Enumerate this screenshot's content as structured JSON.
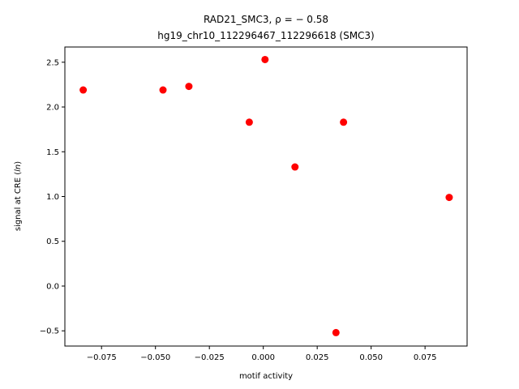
{
  "chart_data": {
    "type": "scatter",
    "title_line1": "RAD21_SMC3, ρ = − 0.58",
    "title_line2": "hg19_chr10_112296467_112296618 (SMC3)",
    "xlabel": "motif activity",
    "ylabel": "signal at CRE (ln)",
    "xlim": [
      -0.092,
      0.0945
    ],
    "ylim": [
      -0.67,
      2.67
    ],
    "xticks": [
      -0.075,
      -0.05,
      -0.025,
      0.0,
      0.025,
      0.05,
      0.075
    ],
    "xtick_labels": [
      "−0.075",
      "−0.050",
      "−0.025",
      "0.000",
      "0.025",
      "0.050",
      "0.075"
    ],
    "yticks": [
      -0.5,
      0.0,
      0.5,
      1.0,
      1.5,
      2.0,
      2.5
    ],
    "ytick_labels": [
      "−0.5",
      "0.0",
      "0.5",
      "1.0",
      "1.5",
      "2.0",
      "2.5"
    ],
    "grid": false,
    "marker_color": "#ff0000",
    "points": [
      {
        "x": -0.0835,
        "y": 2.19
      },
      {
        "x": -0.0465,
        "y": 2.19
      },
      {
        "x": -0.0345,
        "y": 2.23
      },
      {
        "x": -0.0065,
        "y": 1.83
      },
      {
        "x": 0.0008,
        "y": 2.53
      },
      {
        "x": 0.0147,
        "y": 1.33
      },
      {
        "x": 0.0337,
        "y": -0.52
      },
      {
        "x": 0.0372,
        "y": 1.83
      },
      {
        "x": 0.0862,
        "y": 0.99
      }
    ]
  }
}
